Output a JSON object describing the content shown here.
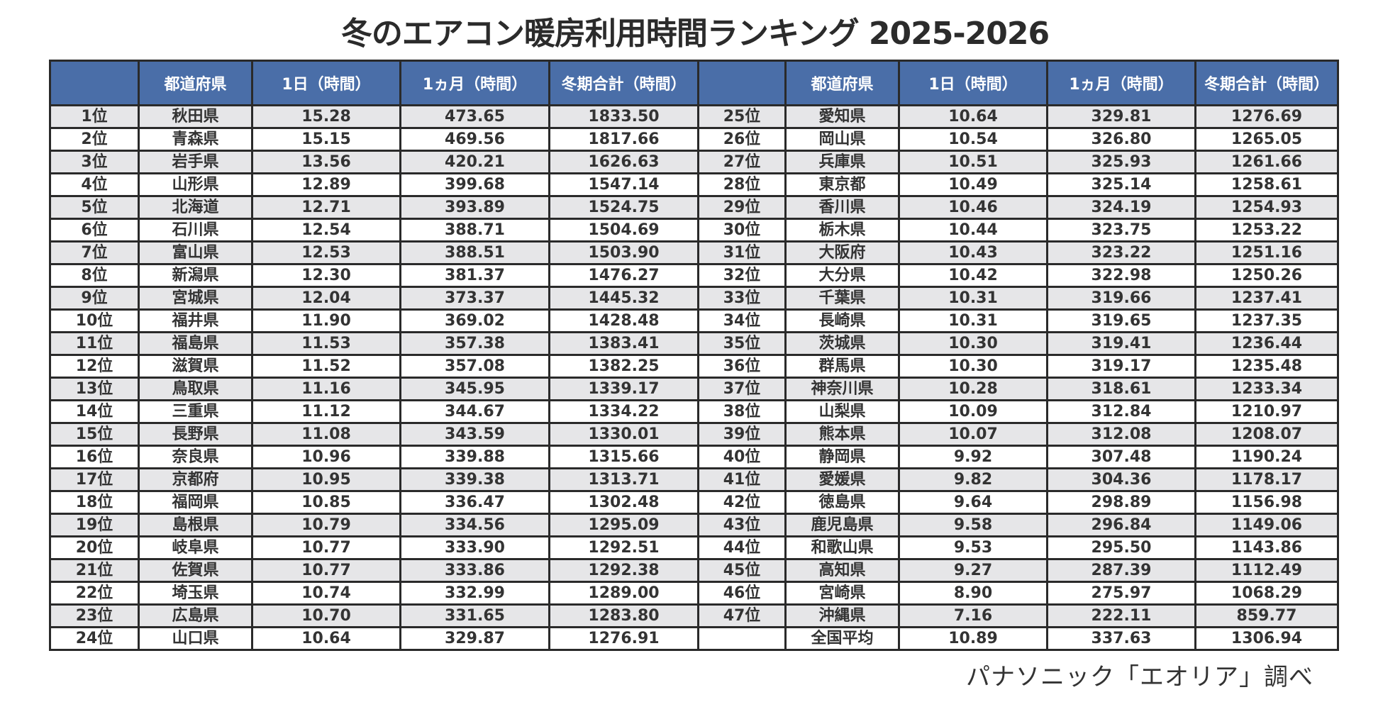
{
  "title": "冬のエアコン暖房利用時間ランキング 2025-2026",
  "headers": [
    "",
    "都道府県",
    "1日（時間）",
    "1ヵ月（時間）",
    "冬期合計（時間）",
    "",
    "都道府県",
    "1日（時間）",
    "1ヵ月（時間）",
    "冬期合計（時間）"
  ],
  "rows": [
    {
      "left": {
        "rank": "1位",
        "pref": "秋田県",
        "day": "15.28",
        "month": "473.65",
        "total": "1833.50"
      },
      "right": {
        "rank": "25位",
        "pref": "愛知県",
        "day": "10.64",
        "month": "329.81",
        "total": "1276.69"
      }
    },
    {
      "left": {
        "rank": "2位",
        "pref": "青森県",
        "day": "15.15",
        "month": "469.56",
        "total": "1817.66"
      },
      "right": {
        "rank": "26位",
        "pref": "岡山県",
        "day": "10.54",
        "month": "326.80",
        "total": "1265.05"
      }
    },
    {
      "left": {
        "rank": "3位",
        "pref": "岩手県",
        "day": "13.56",
        "month": "420.21",
        "total": "1626.63"
      },
      "right": {
        "rank": "27位",
        "pref": "兵庫県",
        "day": "10.51",
        "month": "325.93",
        "total": "1261.66"
      }
    },
    {
      "left": {
        "rank": "4位",
        "pref": "山形県",
        "day": "12.89",
        "month": "399.68",
        "total": "1547.14"
      },
      "right": {
        "rank": "28位",
        "pref": "東京都",
        "day": "10.49",
        "month": "325.14",
        "total": "1258.61"
      }
    },
    {
      "left": {
        "rank": "5位",
        "pref": "北海道",
        "day": "12.71",
        "month": "393.89",
        "total": "1524.75"
      },
      "right": {
        "rank": "29位",
        "pref": "香川県",
        "day": "10.46",
        "month": "324.19",
        "total": "1254.93"
      }
    },
    {
      "left": {
        "rank": "6位",
        "pref": "石川県",
        "day": "12.54",
        "month": "388.71",
        "total": "1504.69"
      },
      "right": {
        "rank": "30位",
        "pref": "栃木県",
        "day": "10.44",
        "month": "323.75",
        "total": "1253.22"
      }
    },
    {
      "left": {
        "rank": "7位",
        "pref": "富山県",
        "day": "12.53",
        "month": "388.51",
        "total": "1503.90"
      },
      "right": {
        "rank": "31位",
        "pref": "大阪府",
        "day": "10.43",
        "month": "323.22",
        "total": "1251.16"
      }
    },
    {
      "left": {
        "rank": "8位",
        "pref": "新潟県",
        "day": "12.30",
        "month": "381.37",
        "total": "1476.27"
      },
      "right": {
        "rank": "32位",
        "pref": "大分県",
        "day": "10.42",
        "month": "322.98",
        "total": "1250.26"
      }
    },
    {
      "left": {
        "rank": "9位",
        "pref": "宮城県",
        "day": "12.04",
        "month": "373.37",
        "total": "1445.32"
      },
      "right": {
        "rank": "33位",
        "pref": "千葉県",
        "day": "10.31",
        "month": "319.66",
        "total": "1237.41"
      }
    },
    {
      "left": {
        "rank": "10位",
        "pref": "福井県",
        "day": "11.90",
        "month": "369.02",
        "total": "1428.48"
      },
      "right": {
        "rank": "34位",
        "pref": "長崎県",
        "day": "10.31",
        "month": "319.65",
        "total": "1237.35"
      }
    },
    {
      "left": {
        "rank": "11位",
        "pref": "福島県",
        "day": "11.53",
        "month": "357.38",
        "total": "1383.41"
      },
      "right": {
        "rank": "35位",
        "pref": "茨城県",
        "day": "10.30",
        "month": "319.41",
        "total": "1236.44"
      }
    },
    {
      "left": {
        "rank": "12位",
        "pref": "滋賀県",
        "day": "11.52",
        "month": "357.08",
        "total": "1382.25"
      },
      "right": {
        "rank": "36位",
        "pref": "群馬県",
        "day": "10.30",
        "month": "319.17",
        "total": "1235.48"
      }
    },
    {
      "left": {
        "rank": "13位",
        "pref": "鳥取県",
        "day": "11.16",
        "month": "345.95",
        "total": "1339.17"
      },
      "right": {
        "rank": "37位",
        "pref": "神奈川県",
        "day": "10.28",
        "month": "318.61",
        "total": "1233.34"
      }
    },
    {
      "left": {
        "rank": "14位",
        "pref": "三重県",
        "day": "11.12",
        "month": "344.67",
        "total": "1334.22"
      },
      "right": {
        "rank": "38位",
        "pref": "山梨県",
        "day": "10.09",
        "month": "312.84",
        "total": "1210.97"
      }
    },
    {
      "left": {
        "rank": "15位",
        "pref": "長野県",
        "day": "11.08",
        "month": "343.59",
        "total": "1330.01"
      },
      "right": {
        "rank": "39位",
        "pref": "熊本県",
        "day": "10.07",
        "month": "312.08",
        "total": "1208.07"
      }
    },
    {
      "left": {
        "rank": "16位",
        "pref": "奈良県",
        "day": "10.96",
        "month": "339.88",
        "total": "1315.66"
      },
      "right": {
        "rank": "40位",
        "pref": "静岡県",
        "day": "9.92",
        "month": "307.48",
        "total": "1190.24"
      }
    },
    {
      "left": {
        "rank": "17位",
        "pref": "京都府",
        "day": "10.95",
        "month": "339.38",
        "total": "1313.71"
      },
      "right": {
        "rank": "41位",
        "pref": "愛媛県",
        "day": "9.82",
        "month": "304.36",
        "total": "1178.17"
      }
    },
    {
      "left": {
        "rank": "18位",
        "pref": "福岡県",
        "day": "10.85",
        "month": "336.47",
        "total": "1302.48"
      },
      "right": {
        "rank": "42位",
        "pref": "徳島県",
        "day": "9.64",
        "month": "298.89",
        "total": "1156.98"
      }
    },
    {
      "left": {
        "rank": "19位",
        "pref": "島根県",
        "day": "10.79",
        "month": "334.56",
        "total": "1295.09"
      },
      "right": {
        "rank": "43位",
        "pref": "鹿児島県",
        "day": "9.58",
        "month": "296.84",
        "total": "1149.06"
      }
    },
    {
      "left": {
        "rank": "20位",
        "pref": "岐阜県",
        "day": "10.77",
        "month": "333.90",
        "total": "1292.51"
      },
      "right": {
        "rank": "44位",
        "pref": "和歌山県",
        "day": "9.53",
        "month": "295.50",
        "total": "1143.86"
      }
    },
    {
      "left": {
        "rank": "21位",
        "pref": "佐賀県",
        "day": "10.77",
        "month": "333.86",
        "total": "1292.38"
      },
      "right": {
        "rank": "45位",
        "pref": "高知県",
        "day": "9.27",
        "month": "287.39",
        "total": "1112.49"
      }
    },
    {
      "left": {
        "rank": "22位",
        "pref": "埼玉県",
        "day": "10.74",
        "month": "332.99",
        "total": "1289.00"
      },
      "right": {
        "rank": "46位",
        "pref": "宮崎県",
        "day": "8.90",
        "month": "275.97",
        "total": "1068.29"
      }
    },
    {
      "left": {
        "rank": "23位",
        "pref": "広島県",
        "day": "10.70",
        "month": "331.65",
        "total": "1283.80"
      },
      "right": {
        "rank": "47位",
        "pref": "沖縄県",
        "day": "7.16",
        "month": "222.11",
        "total": "859.77"
      }
    },
    {
      "left": {
        "rank": "24位",
        "pref": "山口県",
        "day": "10.64",
        "month": "329.87",
        "total": "1276.91"
      },
      "right": {
        "rank": "",
        "pref": "全国平均",
        "day": "10.89",
        "month": "337.63",
        "total": "1306.94"
      }
    }
  ],
  "footer": "パナソニック「エオリア」調べ",
  "colors": {
    "header_bg": "#4a6ea8",
    "header_text": "#ffffff",
    "row_odd_bg": "#e6e6e8",
    "row_even_bg": "#ffffff",
    "border": "#2a2a2a",
    "text": "#333333"
  }
}
